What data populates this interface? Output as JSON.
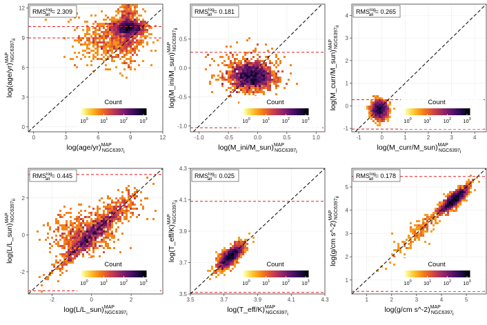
{
  "figure": {
    "colors": {
      "identity_line": "#000000",
      "limit_line": "#e41a1c",
      "panel_border": "#333333",
      "cmap": [
        "#fcffa4",
        "#fac228",
        "#f57d15",
        "#d44842",
        "#9f2a63",
        "#65156e",
        "#280b53",
        "#000004"
      ]
    }
  },
  "chart_data": [
    {
      "type": "scatter",
      "subtype": "2d-density-hexbin",
      "title": "",
      "rms": {
        "label": "RMS",
        "sup": "log",
        "sub": "all",
        "value": "2.309"
      },
      "xlabel": {
        "pre": "log(age/yr)",
        "sup": "MAP",
        "sub": "NGC6397",
        "tail": "i"
      },
      "ylabel": {
        "pre": "log(age/yr)",
        "sup": "MAP",
        "sub": "NGC6397",
        "tail": "ii"
      },
      "xlim": [
        -0.5,
        12
      ],
      "ylim": [
        -0.5,
        12.4
      ],
      "xticks": [
        0,
        3,
        6,
        9,
        12
      ],
      "xtick_labels": [
        "0",
        "3",
        "6",
        "9",
        "12"
      ],
      "yticks": [
        0,
        3,
        6,
        9,
        12
      ],
      "ytick_labels": [
        "0",
        "3",
        "6",
        "9",
        "12"
      ],
      "identity_line": true,
      "hlines": [
        10.13,
        8.98
      ],
      "cluster": {
        "cx": 8.8,
        "cy": 9.9,
        "count_max": 1500
      },
      "legend": {
        "title": "Count",
        "ticks": [
          "10",
          "10",
          "10",
          "10"
        ],
        "exponents": [
          "0",
          "1",
          "2",
          "3"
        ],
        "position": "bottom-right"
      }
    },
    {
      "type": "scatter",
      "subtype": "2d-density-hexbin",
      "title": "",
      "rms": {
        "label": "RMS",
        "sup": "log",
        "sub": "all",
        "value": "0.181"
      },
      "xlabel": {
        "pre": "log(M_ini/M_sun)",
        "sup": "MAP",
        "sub": "NGC6397",
        "tail": "i"
      },
      "ylabel": {
        "pre": "log(M_ini/M_sun)",
        "sup": "MAP",
        "sub": "NGC6397",
        "tail": "ii"
      },
      "xlim": [
        -1.15,
        1.15
      ],
      "ylim": [
        -1.1,
        1.1
      ],
      "xticks": [
        -1.0,
        -0.5,
        0.0,
        0.5,
        1.0
      ],
      "xtick_labels": [
        "-1.0",
        "-0.5",
        "0.0",
        "0.5",
        "1.0"
      ],
      "yticks": [
        -1.0,
        -0.5,
        0.0,
        0.5
      ],
      "ytick_labels": [
        "-1.0",
        "-0.5",
        "0.0",
        "0.5"
      ],
      "identity_line": true,
      "hlines": [
        0.27,
        -1.03
      ],
      "cluster": {
        "cx": -0.1,
        "cy": -0.18,
        "count_max": 1200
      },
      "legend": {
        "title": "Count",
        "ticks": [
          "10",
          "10",
          "10",
          "10"
        ],
        "exponents": [
          "0",
          "1",
          "2",
          "3"
        ],
        "position": "bottom-right"
      }
    },
    {
      "type": "scatter",
      "subtype": "2d-density-hexbin",
      "title": "",
      "rms": {
        "label": "RMS",
        "sup": "log",
        "sub": "all",
        "value": "0.265"
      },
      "xlabel": {
        "pre": "log(M_curr/M_sun)",
        "sup": "MAP",
        "sub": "NGC6397",
        "tail": "i"
      },
      "ylabel": {
        "pre": "log(M_curr/M_sun)",
        "sup": "MAP",
        "sub": "NGC6397",
        "tail": "ii"
      },
      "xlim": [
        -1.3,
        4.5
      ],
      "ylim": [
        -1.15,
        4.5
      ],
      "xticks": [
        -1,
        0,
        1,
        2,
        3,
        4
      ],
      "xtick_labels": [
        "-1",
        "0",
        "1",
        "2",
        "3",
        "4"
      ],
      "yticks": [
        -1,
        0,
        1,
        2,
        3,
        4
      ],
      "ytick_labels": [
        "-1",
        "0",
        "1",
        "2",
        "3",
        "4"
      ],
      "identity_line": true,
      "hlines": [
        0.27,
        -1.03
      ],
      "cluster": {
        "cx": -0.12,
        "cy": -0.17,
        "count_max": 1200
      },
      "legend": {
        "title": "Count",
        "ticks": [
          "10",
          "10",
          "10",
          "10"
        ],
        "exponents": [
          "0",
          "1",
          "2",
          "3"
        ],
        "position": "bottom-right"
      }
    },
    {
      "type": "scatter",
      "subtype": "2d-density-hexbin",
      "title": "",
      "rms": {
        "label": "RMS",
        "sup": "log",
        "sub": "all",
        "value": "0.445"
      },
      "xlabel": {
        "pre": "log(L/L_sun)",
        "sup": "MAP",
        "sub": "NGC6397",
        "tail": "i"
      },
      "ylabel": {
        "pre": "log(L/L_sun)",
        "sup": "MAP",
        "sub": "NGC6397",
        "tail": "ii"
      },
      "xlim": [
        -3.2,
        3.6
      ],
      "ylim": [
        -3.2,
        3.6
      ],
      "xticks": [
        -2,
        0,
        2
      ],
      "xtick_labels": [
        "-2",
        "0",
        "2"
      ],
      "yticks": [
        -2,
        0,
        2
      ],
      "ytick_labels": [
        "-2",
        "0",
        "2"
      ],
      "identity_line": true,
      "hlines": [
        3.27,
        -3.03
      ],
      "cluster": {
        "cx": 0.0,
        "cy": 0.0,
        "count_max": 1400
      },
      "legend": {
        "title": "Count",
        "ticks": [
          "10",
          "10",
          "10",
          "10"
        ],
        "exponents": [
          "0",
          "1",
          "2",
          "3"
        ],
        "position": "bottom-right"
      }
    },
    {
      "type": "scatter",
      "subtype": "2d-density-hexbin",
      "title": "",
      "rms": {
        "label": "RMS",
        "sup": "log",
        "sub": "all",
        "value": "0.025"
      },
      "xlabel": {
        "pre": "log(T_eff/K)",
        "sup": "MAP",
        "sub": "NGC6397",
        "tail": "i"
      },
      "ylabel": {
        "pre": "log(T_eff/K)",
        "sup": "MAP",
        "sub": "NGC6397",
        "tail": "ii"
      },
      "xlim": [
        3.5,
        4.3
      ],
      "ylim": [
        3.5,
        4.3
      ],
      "xticks": [
        3.5,
        3.7,
        3.9,
        4.1,
        4.3
      ],
      "xtick_labels": [
        "3.5",
        "3.7",
        "3.9",
        "4.1",
        "4.3"
      ],
      "yticks": [
        3.5,
        3.7,
        3.9,
        4.1,
        4.3
      ],
      "ytick_labels": [
        "3.5",
        "3.7",
        "3.9",
        "4.1",
        "4.3"
      ],
      "identity_line": true,
      "hlines": [
        4.09,
        3.51
      ],
      "cluster": {
        "cx": 3.74,
        "cy": 3.74,
        "count_max": 1400
      },
      "legend": {
        "title": "Count",
        "ticks": [
          "10",
          "10",
          "10",
          "10"
        ],
        "exponents": [
          "0",
          "1",
          "2",
          "3"
        ],
        "position": "bottom-right"
      }
    },
    {
      "type": "scatter",
      "subtype": "2d-density-hexbin",
      "title": "",
      "rms": {
        "label": "RMS",
        "sup": "log",
        "sub": "all",
        "value": "0.178"
      },
      "xlabel": {
        "pre": "log(g/cm s^-2)",
        "sup": "MAP",
        "sub": "NGC6397",
        "tail": "i"
      },
      "ylabel": {
        "pre": "log(g/cm s^-2)",
        "sup": "MAP",
        "sub": "NGC6397",
        "tail": "ii"
      },
      "xlim": [
        0.4,
        5.8
      ],
      "ylim": [
        0.4,
        5.8
      ],
      "xticks": [
        1,
        2,
        3,
        4,
        5
      ],
      "xtick_labels": [
        "1",
        "2",
        "3",
        "4",
        "5"
      ],
      "yticks": [
        1,
        2,
        3,
        4,
        5
      ],
      "ytick_labels": [
        "1",
        "2",
        "3",
        "4",
        "5"
      ],
      "identity_line": true,
      "hlines": [
        5.45,
        0.51
      ],
      "cluster": {
        "cx": 4.5,
        "cy": 4.45,
        "count_max": 1400
      },
      "legend": {
        "title": "Count",
        "ticks": [
          "10",
          "10",
          "10",
          "10"
        ],
        "exponents": [
          "0",
          "1",
          "2",
          "3"
        ],
        "position": "bottom-right"
      }
    }
  ]
}
